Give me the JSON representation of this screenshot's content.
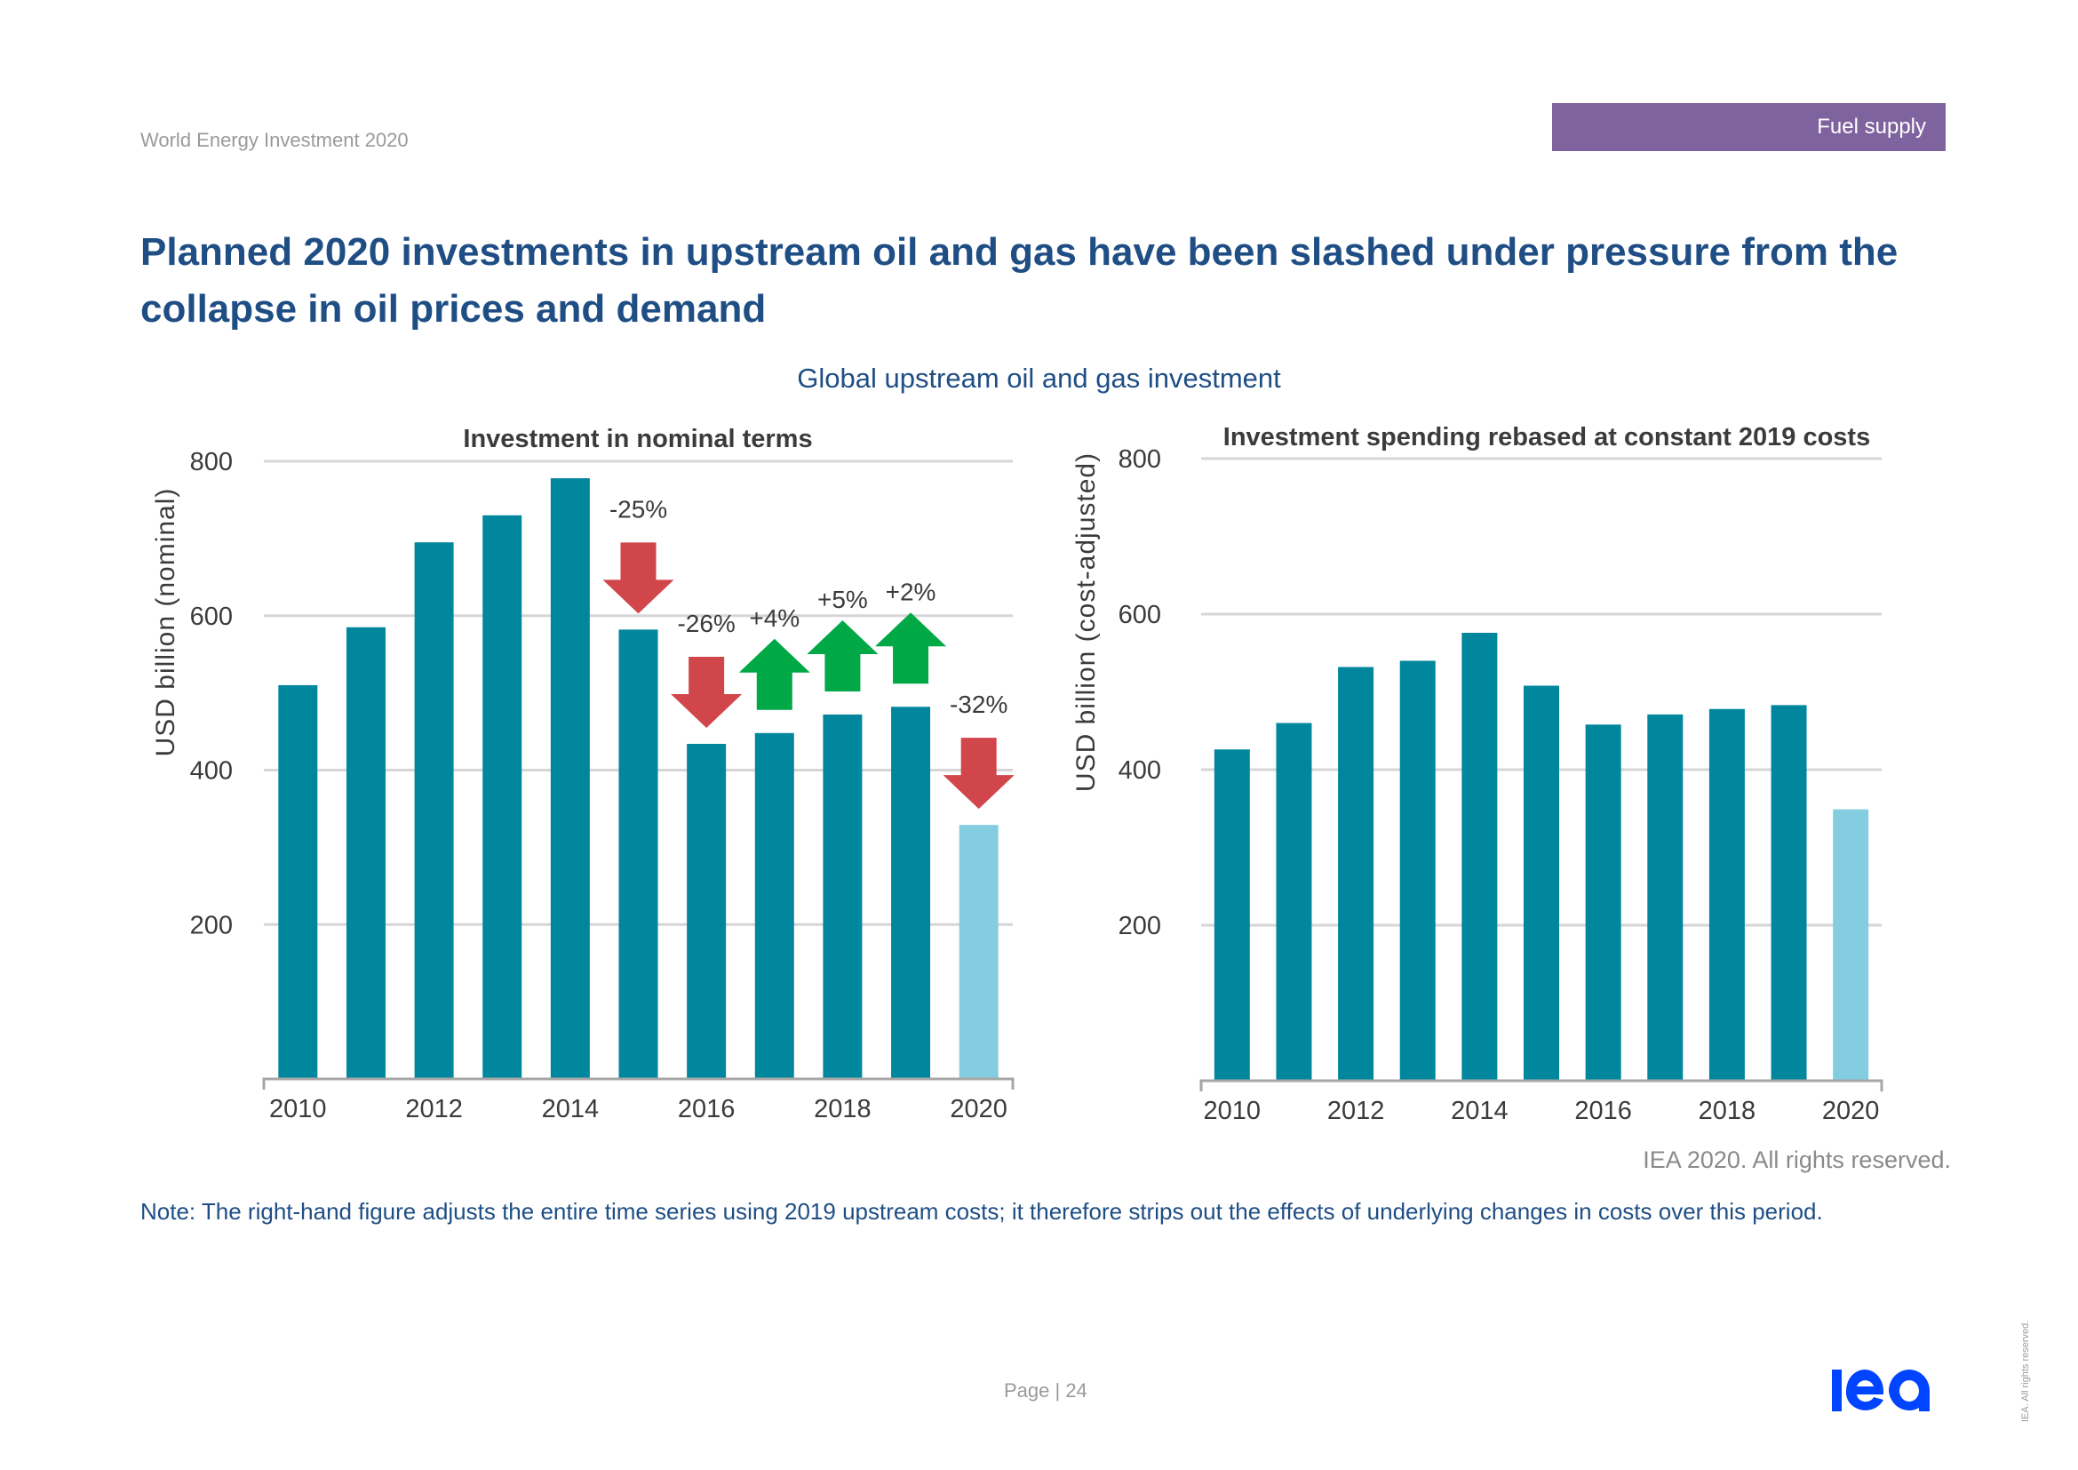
{
  "header": {
    "report_name": "World Energy Investment 2020",
    "section_tag": "Fuel supply",
    "section_tag_color": "#7f639e"
  },
  "headline": "Planned 2020 investments in upstream oil and gas have been slashed under pressure from the collapse in oil prices and demand",
  "figure_title": "Global upstream oil and gas investment",
  "colors": {
    "bar": "#00879d",
    "bar_highlight": "#84cde0",
    "arrow_down": "#d1464b",
    "arrow_up": "#00a846",
    "grid": "#d6d6d6",
    "axis": "#a6a6a6",
    "text": "#3b3b3b",
    "brand_blue": "#0044ff"
  },
  "chart_data": [
    {
      "type": "bar",
      "title": "Investment in nominal terms",
      "xlabel": "",
      "ylabel": "USD billion (nominal)",
      "ylim": [
        0,
        800
      ],
      "yticks": [
        200,
        400,
        600,
        800
      ],
      "grid": true,
      "categories": [
        "2010",
        "2011",
        "2012",
        "2013",
        "2014",
        "2015",
        "2016",
        "2017",
        "2018",
        "2019",
        "2020"
      ],
      "xtick_labels": [
        "2010",
        "2012",
        "2014",
        "2016",
        "2018",
        "2020"
      ],
      "values": [
        510,
        585,
        695,
        730,
        778,
        582,
        434,
        448,
        472,
        482,
        329
      ],
      "highlight_categories": [
        "2020"
      ],
      "annotations": [
        {
          "category": "2015",
          "label": "-25%",
          "direction": "down"
        },
        {
          "category": "2016",
          "label": "-26%",
          "direction": "down"
        },
        {
          "category": "2017",
          "label": "+4%",
          "direction": "up"
        },
        {
          "category": "2018",
          "label": "+5%",
          "direction": "up"
        },
        {
          "category": "2019",
          "label": "+2%",
          "direction": "up"
        },
        {
          "category": "2020",
          "label": "-32%",
          "direction": "down"
        }
      ]
    },
    {
      "type": "bar",
      "title": "Investment spending rebased at constant 2019 costs",
      "xlabel": "",
      "ylabel": "USD billion (cost-adjusted)",
      "ylim": [
        0,
        800
      ],
      "yticks": [
        200,
        400,
        600,
        800
      ],
      "grid": true,
      "categories": [
        "2010",
        "2011",
        "2012",
        "2013",
        "2014",
        "2015",
        "2016",
        "2017",
        "2018",
        "2019",
        "2020"
      ],
      "xtick_labels": [
        "2010",
        "2012",
        "2014",
        "2016",
        "2018",
        "2020"
      ],
      "values": [
        426,
        460,
        532,
        540,
        576,
        508,
        458,
        471,
        478,
        483,
        349
      ],
      "highlight_categories": [
        "2020"
      ],
      "annotations": []
    }
  ],
  "copyright": "IEA 2020. All rights reserved.",
  "note": "Note: The right-hand figure adjusts the entire time series using 2019 upstream costs; it therefore strips out the effects of underlying changes in costs over this period.",
  "footer": {
    "page_label": "Page | 24",
    "logo_text": "iea",
    "side_rights": "IEA. All rights reserved."
  }
}
